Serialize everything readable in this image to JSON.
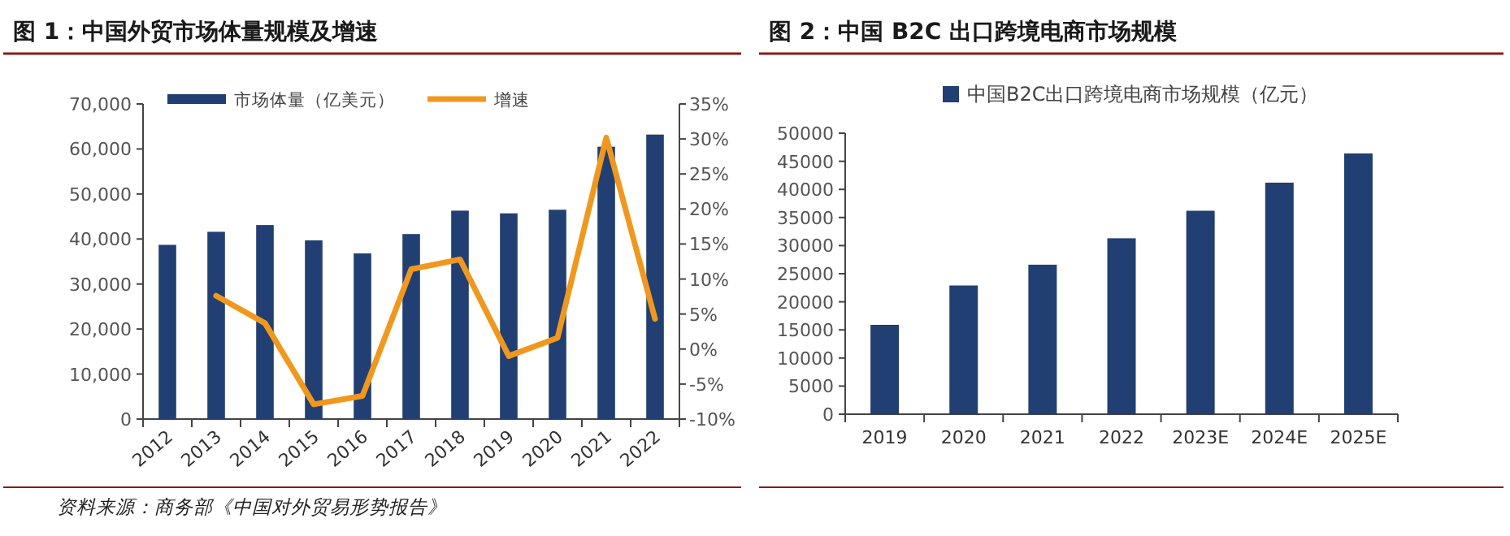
{
  "chart_data": [
    {
      "type": "bar",
      "title": "图 1：中国外贸市场体量规模及增速",
      "categories": [
        "2012",
        "2013",
        "2014",
        "2015",
        "2016",
        "2017",
        "2018",
        "2019",
        "2020",
        "2021",
        "2022"
      ],
      "series": [
        {
          "name": "市场体量（亿美元）",
          "color": "#213f72",
          "values": [
            38700,
            41600,
            43100,
            39700,
            36800,
            41100,
            46300,
            45700,
            46500,
            60500,
            63200
          ]
        },
        {
          "name": "增速",
          "type": "line",
          "axis": "y2",
          "color": "#f0981e",
          "values": [
            null,
            7.6,
            3.7,
            -7.9,
            -6.7,
            11.4,
            12.8,
            -1.0,
            1.6,
            30.2,
            4.3
          ]
        }
      ],
      "ylim": [
        0,
        70000
      ],
      "yticks": [
        {
          "value": 0,
          "label": "0"
        },
        {
          "value": 10000,
          "label": "10,000"
        },
        {
          "value": 20000,
          "label": "20,000"
        },
        {
          "value": 30000,
          "label": "30,000"
        },
        {
          "value": 40000,
          "label": "40,000"
        },
        {
          "value": 50000,
          "label": "50,000"
        },
        {
          "value": 60000,
          "label": "60,000"
        },
        {
          "value": 70000,
          "label": "70,000"
        }
      ],
      "y2lim": [
        -10,
        35
      ],
      "y2ticks": [
        {
          "value": -10,
          "label": "-10%"
        },
        {
          "value": -5,
          "label": "-5%"
        },
        {
          "value": 0,
          "label": "0%"
        },
        {
          "value": 5,
          "label": "5%"
        },
        {
          "value": 10,
          "label": "10%"
        },
        {
          "value": 15,
          "label": "15%"
        },
        {
          "value": 20,
          "label": "20%"
        },
        {
          "value": 25,
          "label": "25%"
        },
        {
          "value": 30,
          "label": "30%"
        },
        {
          "value": 35,
          "label": "35%"
        }
      ],
      "legend": "top",
      "annotations": [
        "资料来源：商务部《中国对外贸易形势报告》"
      ]
    },
    {
      "type": "bar",
      "title": "图 2：中国 B2C 出口跨境电商市场规模",
      "categories": [
        "2019",
        "2020",
        "2021",
        "2022",
        "2023E",
        "2024E",
        "2025E"
      ],
      "series": [
        {
          "name": "中国B2C出口跨境电商市场规模（亿元）",
          "color": "#213f72",
          "values": [
            15900,
            22900,
            26600,
            31300,
            36200,
            41200,
            46400
          ]
        }
      ],
      "ylim": [
        0,
        50000
      ],
      "yticks": [
        0,
        5000,
        10000,
        15000,
        20000,
        25000,
        30000,
        35000,
        40000,
        45000,
        50000
      ],
      "legend": "top"
    }
  ]
}
